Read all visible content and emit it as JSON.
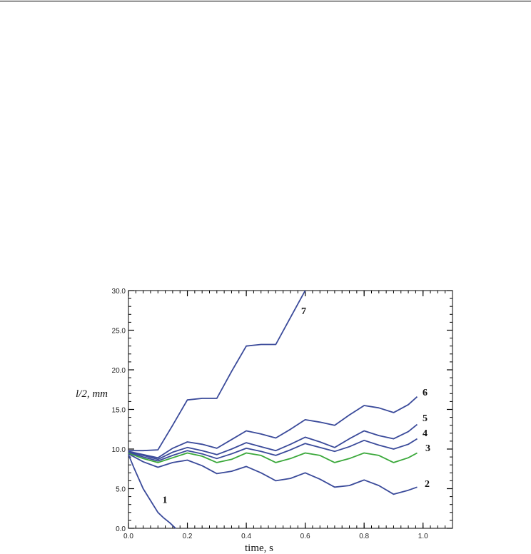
{
  "chart_data": {
    "type": "line",
    "title": "",
    "xlabel": "time, s",
    "ylabel": "l/2, mm",
    "xlim": [
      0,
      1.1
    ],
    "ylim": [
      0,
      30
    ],
    "x_ticks": [
      "0.0",
      "0.2",
      "0.4",
      "0.6",
      "0.8",
      "1.0"
    ],
    "y_ticks": [
      "0.0",
      "5.0",
      "10.0",
      "15.0",
      "20.0",
      "25.0",
      "30.0"
    ],
    "grid": false,
    "colors": {
      "blue": "#3a4a9a",
      "green": "#3aa83a"
    },
    "series": [
      {
        "label": "1",
        "color": "blue",
        "x": [
          0,
          0.02,
          0.05,
          0.08,
          0.1,
          0.12,
          0.14,
          0.16
        ],
        "y": [
          9.3,
          7.5,
          5.0,
          3.2,
          2.0,
          1.3,
          0.7,
          0.0
        ]
      },
      {
        "label": "2",
        "color": "blue",
        "x": [
          0,
          0.05,
          0.1,
          0.15,
          0.2,
          0.25,
          0.3,
          0.35,
          0.4,
          0.45,
          0.5,
          0.55,
          0.6,
          0.65,
          0.7,
          0.75,
          0.8,
          0.85,
          0.9,
          0.95,
          0.98
        ],
        "y": [
          9.4,
          8.4,
          7.7,
          8.3,
          8.6,
          7.9,
          6.9,
          7.2,
          7.8,
          7.0,
          6.0,
          6.3,
          7.0,
          6.2,
          5.2,
          5.4,
          6.1,
          5.4,
          4.3,
          4.8,
          5.2
        ]
      },
      {
        "label": "3",
        "color": "green",
        "x": [
          0,
          0.05,
          0.1,
          0.15,
          0.2,
          0.25,
          0.3,
          0.35,
          0.4,
          0.45,
          0.5,
          0.55,
          0.6,
          0.65,
          0.7,
          0.75,
          0.8,
          0.85,
          0.9,
          0.95,
          0.98
        ],
        "y": [
          9.5,
          8.8,
          8.3,
          8.9,
          9.5,
          9.1,
          8.3,
          8.7,
          9.5,
          9.2,
          8.3,
          8.8,
          9.5,
          9.2,
          8.3,
          8.8,
          9.5,
          9.2,
          8.3,
          8.9,
          9.5
        ]
      },
      {
        "label": "4",
        "color": "blue",
        "x": [
          0,
          0.05,
          0.1,
          0.15,
          0.2,
          0.25,
          0.3,
          0.35,
          0.4,
          0.45,
          0.5,
          0.55,
          0.6,
          0.65,
          0.7,
          0.75,
          0.8,
          0.85,
          0.9,
          0.95,
          0.98
        ],
        "y": [
          9.6,
          9.0,
          8.5,
          9.2,
          9.8,
          9.4,
          8.8,
          9.4,
          10.1,
          9.7,
          9.2,
          9.9,
          10.7,
          10.2,
          9.7,
          10.3,
          11.1,
          10.5,
          10.0,
          10.6,
          11.3
        ]
      },
      {
        "label": "5",
        "color": "blue",
        "x": [
          0,
          0.05,
          0.1,
          0.15,
          0.2,
          0.25,
          0.3,
          0.35,
          0.4,
          0.45,
          0.5,
          0.55,
          0.6,
          0.65,
          0.7,
          0.75,
          0.8,
          0.85,
          0.9,
          0.95,
          0.98
        ],
        "y": [
          9.7,
          9.2,
          8.7,
          9.6,
          10.2,
          9.8,
          9.3,
          10.0,
          10.8,
          10.3,
          9.8,
          10.6,
          11.5,
          10.9,
          10.2,
          11.3,
          12.3,
          11.7,
          11.3,
          12.2,
          13.1
        ]
      },
      {
        "label": "6",
        "color": "blue",
        "x": [
          0,
          0.05,
          0.1,
          0.15,
          0.2,
          0.25,
          0.3,
          0.35,
          0.4,
          0.45,
          0.5,
          0.55,
          0.6,
          0.65,
          0.7,
          0.75,
          0.8,
          0.85,
          0.9,
          0.95,
          0.98
        ],
        "y": [
          9.7,
          9.3,
          8.9,
          10.1,
          10.9,
          10.6,
          10.1,
          11.2,
          12.3,
          11.9,
          11.4,
          12.5,
          13.7,
          13.4,
          13.0,
          14.3,
          15.5,
          15.2,
          14.6,
          15.6,
          16.6
        ]
      },
      {
        "label": "7",
        "color": "blue",
        "x": [
          0,
          0.05,
          0.1,
          0.15,
          0.2,
          0.25,
          0.3,
          0.35,
          0.4,
          0.45,
          0.5,
          0.55,
          0.6
        ],
        "y": [
          9.8,
          9.8,
          9.9,
          13.0,
          16.2,
          16.4,
          16.4,
          19.8,
          23.0,
          23.2,
          23.2,
          26.6,
          30.0
        ]
      }
    ]
  }
}
